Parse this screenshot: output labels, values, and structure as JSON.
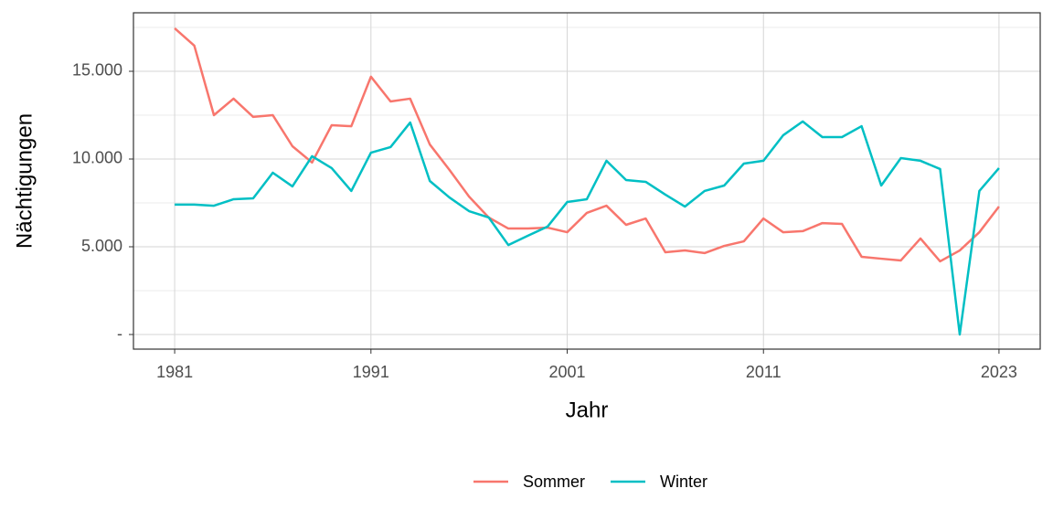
{
  "chart_data": {
    "type": "line",
    "x_label": "Jahr",
    "y_label": "Nächtigungen",
    "x": [
      1981,
      1982,
      1983,
      1984,
      1985,
      1986,
      1987,
      1988,
      1989,
      1990,
      1991,
      1992,
      1993,
      1994,
      1995,
      1996,
      1997,
      1998,
      1999,
      2000,
      2001,
      2002,
      2003,
      2004,
      2005,
      2006,
      2007,
      2008,
      2009,
      2010,
      2011,
      2012,
      2013,
      2014,
      2015,
      2016,
      2017,
      2018,
      2019,
      2020,
      2021,
      2022,
      2023
    ],
    "series": [
      {
        "name": "Sommer",
        "color": "#F8766D",
        "values": [
          17450,
          16460,
          12500,
          13440,
          12400,
          12500,
          10730,
          9800,
          11930,
          11870,
          14690,
          13280,
          13440,
          10830,
          9380,
          7860,
          6670,
          6040,
          6040,
          6090,
          5830,
          6930,
          7340,
          6250,
          6610,
          4690,
          4790,
          4640,
          5050,
          5310,
          6610,
          5830,
          5890,
          6350,
          6300,
          4430,
          4320,
          4220,
          5470,
          4170,
          4790,
          5830,
          7290
        ]
      },
      {
        "name": "Winter",
        "color": "#00BFC4",
        "values": [
          7400,
          7400,
          7340,
          7710,
          7760,
          9220,
          8440,
          10160,
          9480,
          8180,
          10360,
          10680,
          12080,
          8750,
          7810,
          7030,
          6670,
          5100,
          5630,
          6150,
          7550,
          7710,
          9900,
          8800,
          8700,
          7970,
          7290,
          8180,
          8490,
          9740,
          9900,
          11350,
          12140,
          11250,
          11250,
          11870,
          8490,
          10050,
          9900,
          9430,
          0,
          8180,
          9480
        ]
      }
    ],
    "xlim": [
      1978.9,
      2025.1
    ],
    "xticks": [
      1981,
      1991,
      2001,
      2011,
      2023
    ],
    "ylim": [
      -833,
      18333
    ],
    "yticks": [
      {
        "value": 0,
        "label": "-"
      },
      {
        "value": 5000,
        "label": "5.000"
      },
      {
        "value": 10000,
        "label": "10.000"
      },
      {
        "value": 15000,
        "label": "15.000"
      }
    ],
    "grid": true,
    "legend": "bottom"
  }
}
